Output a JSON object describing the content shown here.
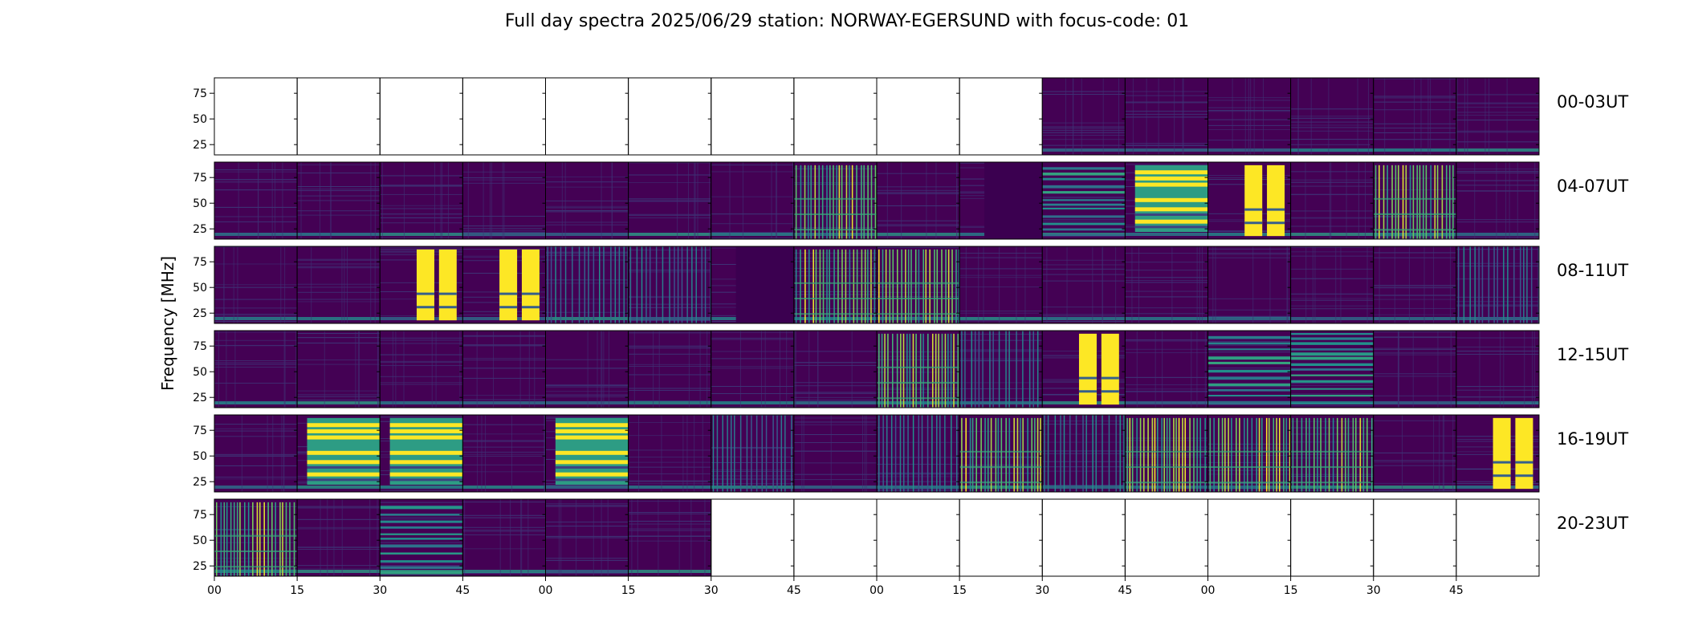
{
  "chart_data": {
    "type": "heatmap",
    "title": "Full day spectra 2025/06/29 station: NORWAY-EGERSUND with focus-code: 01",
    "ylabel": "Frequency [MHz]",
    "yticks": [
      25,
      50,
      75
    ],
    "ylim": [
      15,
      90
    ],
    "xticks": [
      "00",
      "15",
      "30",
      "45",
      "00",
      "15",
      "30",
      "45",
      "00",
      "15",
      "30",
      "45",
      "00",
      "15",
      "30",
      "45"
    ],
    "colormap": "viridis",
    "colors": {
      "low": "#440154",
      "mid": "#21918c",
      "high": "#fde725",
      "empty": "#ffffff"
    },
    "rows": [
      {
        "label": "00-03UT",
        "panels": [
          {
            "pattern": "empty"
          },
          {
            "pattern": "empty"
          },
          {
            "pattern": "empty"
          },
          {
            "pattern": "empty"
          },
          {
            "pattern": "empty"
          },
          {
            "pattern": "empty"
          },
          {
            "pattern": "empty"
          },
          {
            "pattern": "empty"
          },
          {
            "pattern": "empty"
          },
          {
            "pattern": "empty"
          },
          {
            "pattern": "quiet"
          },
          {
            "pattern": "quiet"
          },
          {
            "pattern": "quiet"
          },
          {
            "pattern": "quiet"
          },
          {
            "pattern": "quiet"
          },
          {
            "pattern": "quiet"
          }
        ]
      },
      {
        "label": "04-07UT",
        "panels": [
          {
            "pattern": "quiet"
          },
          {
            "pattern": "quiet"
          },
          {
            "pattern": "quiet"
          },
          {
            "pattern": "quiet"
          },
          {
            "pattern": "quiet"
          },
          {
            "pattern": "quiet"
          },
          {
            "pattern": "quiet"
          },
          {
            "pattern": "bright-stripes"
          },
          {
            "pattern": "quiet"
          },
          {
            "pattern": "dark"
          },
          {
            "pattern": "teal-bands"
          },
          {
            "pattern": "yellow-blocks"
          },
          {
            "pattern": "yellow-columns"
          },
          {
            "pattern": "quiet"
          },
          {
            "pattern": "bright-stripes"
          },
          {
            "pattern": "quiet"
          }
        ]
      },
      {
        "label": "08-11UT",
        "panels": [
          {
            "pattern": "quiet"
          },
          {
            "pattern": "quiet"
          },
          {
            "pattern": "yellow-columns"
          },
          {
            "pattern": "yellow-columns"
          },
          {
            "pattern": "stripes"
          },
          {
            "pattern": "stripes"
          },
          {
            "pattern": "dark"
          },
          {
            "pattern": "bright-stripes"
          },
          {
            "pattern": "bright-stripes"
          },
          {
            "pattern": "quiet"
          },
          {
            "pattern": "quiet"
          },
          {
            "pattern": "quiet"
          },
          {
            "pattern": "quiet"
          },
          {
            "pattern": "quiet"
          },
          {
            "pattern": "quiet"
          },
          {
            "pattern": "stripes"
          }
        ]
      },
      {
        "label": "12-15UT",
        "panels": [
          {
            "pattern": "quiet"
          },
          {
            "pattern": "quiet"
          },
          {
            "pattern": "quiet"
          },
          {
            "pattern": "quiet"
          },
          {
            "pattern": "quiet"
          },
          {
            "pattern": "quiet"
          },
          {
            "pattern": "quiet"
          },
          {
            "pattern": "quiet"
          },
          {
            "pattern": "bright-stripes"
          },
          {
            "pattern": "stripes"
          },
          {
            "pattern": "yellow-columns"
          },
          {
            "pattern": "quiet"
          },
          {
            "pattern": "teal-bands"
          },
          {
            "pattern": "teal-bands"
          },
          {
            "pattern": "quiet"
          },
          {
            "pattern": "quiet"
          }
        ]
      },
      {
        "label": "16-19UT",
        "panels": [
          {
            "pattern": "quiet"
          },
          {
            "pattern": "yellow-blocks"
          },
          {
            "pattern": "yellow-blocks"
          },
          {
            "pattern": "quiet"
          },
          {
            "pattern": "yellow-blocks"
          },
          {
            "pattern": "quiet"
          },
          {
            "pattern": "stripes"
          },
          {
            "pattern": "quiet"
          },
          {
            "pattern": "stripes"
          },
          {
            "pattern": "bright-stripes"
          },
          {
            "pattern": "stripes"
          },
          {
            "pattern": "bright-stripes"
          },
          {
            "pattern": "bright-stripes"
          },
          {
            "pattern": "bright-stripes"
          },
          {
            "pattern": "quiet"
          },
          {
            "pattern": "yellow-columns"
          }
        ]
      },
      {
        "label": "20-23UT",
        "panels": [
          {
            "pattern": "bright-stripes"
          },
          {
            "pattern": "quiet"
          },
          {
            "pattern": "teal-bands"
          },
          {
            "pattern": "quiet"
          },
          {
            "pattern": "quiet"
          },
          {
            "pattern": "quiet"
          },
          {
            "pattern": "empty"
          },
          {
            "pattern": "empty"
          },
          {
            "pattern": "empty"
          },
          {
            "pattern": "empty"
          },
          {
            "pattern": "empty"
          },
          {
            "pattern": "empty"
          },
          {
            "pattern": "empty"
          },
          {
            "pattern": "empty"
          },
          {
            "pattern": "empty"
          },
          {
            "pattern": "empty"
          }
        ]
      }
    ]
  }
}
